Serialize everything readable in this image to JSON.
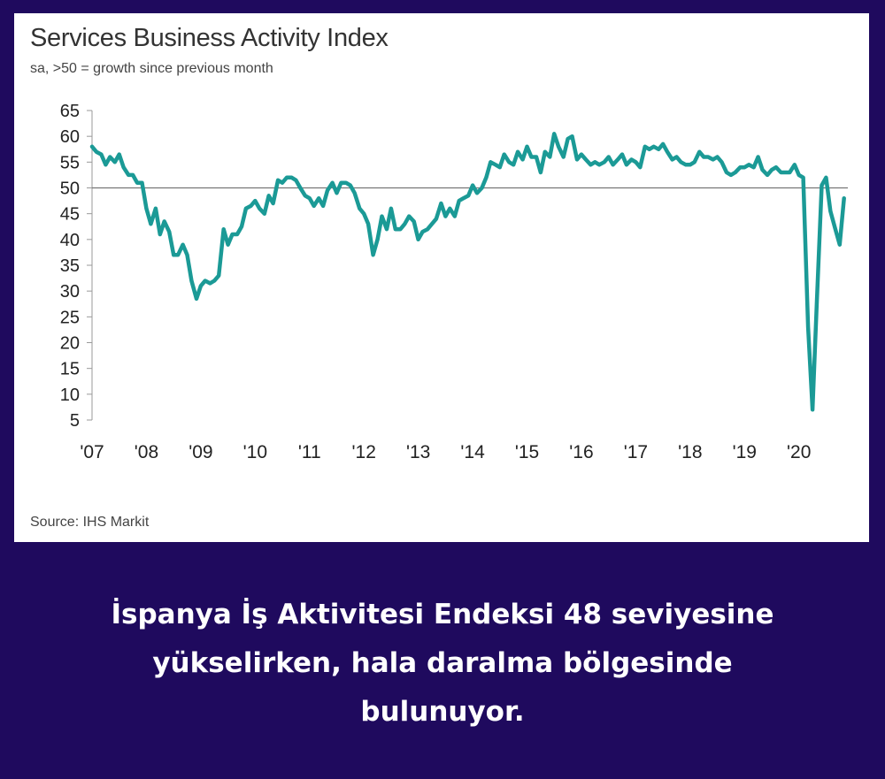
{
  "chart_data": {
    "type": "line",
    "title": "Services Business Activity Index",
    "subtitle": "sa, >50 = growth since previous month",
    "source": "Source: IHS Markit",
    "ylim": [
      5,
      65
    ],
    "yticks": [
      65,
      60,
      55,
      50,
      45,
      40,
      35,
      30,
      25,
      20,
      15,
      10,
      5
    ],
    "xlim": [
      2007,
      2020.9
    ],
    "xticks": [
      {
        "x": 2007,
        "label": "'07"
      },
      {
        "x": 2008,
        "label": "'08"
      },
      {
        "x": 2009,
        "label": "'09"
      },
      {
        "x": 2010,
        "label": "'10"
      },
      {
        "x": 2011,
        "label": "'11"
      },
      {
        "x": 2012,
        "label": "'12"
      },
      {
        "x": 2013,
        "label": "'13"
      },
      {
        "x": 2014,
        "label": "'14"
      },
      {
        "x": 2015,
        "label": "'15"
      },
      {
        "x": 2016,
        "label": "'16"
      },
      {
        "x": 2017,
        "label": "'17"
      },
      {
        "x": 2018,
        "label": "'18"
      },
      {
        "x": 2019,
        "label": "'19"
      },
      {
        "x": 2020,
        "label": "'20"
      }
    ],
    "reference_line": 50,
    "grid": false,
    "line_color": "#1b9a96",
    "series": [
      {
        "x": [
          2007.0,
          2007.08,
          2007.17,
          2007.25,
          2007.33,
          2007.42,
          2007.5,
          2007.58,
          2007.67,
          2007.75,
          2007.83,
          2007.92,
          2008.0,
          2008.08,
          2008.17,
          2008.25,
          2008.33,
          2008.42,
          2008.5,
          2008.58,
          2008.67,
          2008.75,
          2008.83,
          2008.92,
          2009.0,
          2009.08,
          2009.17,
          2009.25,
          2009.33,
          2009.42,
          2009.5,
          2009.58,
          2009.67,
          2009.75,
          2009.83,
          2009.92,
          2010.0,
          2010.08,
          2010.17,
          2010.25,
          2010.33,
          2010.42,
          2010.5,
          2010.58,
          2010.67,
          2010.75,
          2010.83,
          2010.92,
          2011.0,
          2011.08,
          2011.17,
          2011.25,
          2011.33,
          2011.42,
          2011.5,
          2011.58,
          2011.67,
          2011.75,
          2011.83,
          2011.92,
          2012.0,
          2012.08,
          2012.17,
          2012.25,
          2012.33,
          2012.42,
          2012.5,
          2012.58,
          2012.67,
          2012.75,
          2012.83,
          2012.92,
          2013.0,
          2013.08,
          2013.17,
          2013.25,
          2013.33,
          2013.42,
          2013.5,
          2013.58,
          2013.67,
          2013.75,
          2013.83,
          2013.92,
          2014.0,
          2014.08,
          2014.17,
          2014.25,
          2014.33,
          2014.42,
          2014.5,
          2014.58,
          2014.67,
          2014.75,
          2014.83,
          2014.92,
          2015.0,
          2015.08,
          2015.17,
          2015.25,
          2015.33,
          2015.42,
          2015.5,
          2015.58,
          2015.67,
          2015.75,
          2015.83,
          2015.92,
          2016.0,
          2016.08,
          2016.17,
          2016.25,
          2016.33,
          2016.42,
          2016.5,
          2016.58,
          2016.67,
          2016.75,
          2016.83,
          2016.92,
          2017.0,
          2017.08,
          2017.17,
          2017.25,
          2017.33,
          2017.42,
          2017.5,
          2017.58,
          2017.67,
          2017.75,
          2017.83,
          2017.92,
          2018.0,
          2018.08,
          2018.17,
          2018.25,
          2018.33,
          2018.42,
          2018.5,
          2018.58,
          2018.67,
          2018.75,
          2018.83,
          2018.92,
          2019.0,
          2019.08,
          2019.17,
          2019.25,
          2019.33,
          2019.42,
          2019.5,
          2019.58,
          2019.67,
          2019.75,
          2019.83,
          2019.92,
          2020.0,
          2020.08,
          2020.17,
          2020.25,
          2020.33,
          2020.42,
          2020.5,
          2020.58,
          2020.67,
          2020.75,
          2020.83
        ],
        "values": [
          58.0,
          57.0,
          56.5,
          54.5,
          56.0,
          55.0,
          56.5,
          54.0,
          52.5,
          52.5,
          51.0,
          51.0,
          46.0,
          43.0,
          46.0,
          41.0,
          43.5,
          41.5,
          37.0,
          37.0,
          39.0,
          37.0,
          32.0,
          28.5,
          31.0,
          32.0,
          31.5,
          32.0,
          33.0,
          42.0,
          39.0,
          41.0,
          41.0,
          42.5,
          46.0,
          46.5,
          47.5,
          46.0,
          45.0,
          48.5,
          47.0,
          51.5,
          51.0,
          52.0,
          52.0,
          51.5,
          50.0,
          48.5,
          48.0,
          46.5,
          48.0,
          46.5,
          49.5,
          51.0,
          49.0,
          51.0,
          51.0,
          50.5,
          49.0,
          46.0,
          45.0,
          43.0,
          37.0,
          40.0,
          44.5,
          42.0,
          46.0,
          42.0,
          42.0,
          43.0,
          44.5,
          43.5,
          40.0,
          41.5,
          42.0,
          43.0,
          44.0,
          47.0,
          44.5,
          46.0,
          44.5,
          47.5,
          48.0,
          48.5,
          50.5,
          49.0,
          50.0,
          52.0,
          55.0,
          54.5,
          54.0,
          56.5,
          55.0,
          54.5,
          57.0,
          55.5,
          58.0,
          56.0,
          56.0,
          53.0,
          57.0,
          56.0,
          60.5,
          58.0,
          56.0,
          59.5,
          60.0,
          55.5,
          56.5,
          55.5,
          54.5,
          55.0,
          54.5,
          55.0,
          56.0,
          54.5,
          55.5,
          56.5,
          54.5,
          55.5,
          55.0,
          54.0,
          58.0,
          57.5,
          58.0,
          57.5,
          58.5,
          57.0,
          55.5,
          56.0,
          55.0,
          54.5,
          54.5,
          55.0,
          57.0,
          56.0,
          56.0,
          55.5,
          56.0,
          55.0,
          53.0,
          52.5,
          53.0,
          54.0,
          54.0,
          54.5,
          54.0,
          56.0,
          53.5,
          52.5,
          53.5,
          54.0,
          53.0,
          53.0,
          53.0,
          54.5,
          52.5,
          52.0,
          23.0,
          7.0,
          28.0,
          50.5,
          52.0,
          45.5,
          42.0,
          39.0,
          48.0
        ]
      }
    ]
  },
  "caption": {
    "line1": "İspanya İş Aktivitesi Endeksi 48 seviyesine",
    "line2": "yükselirken, hala daralma bölgesinde",
    "line3": "bulunuyor."
  }
}
